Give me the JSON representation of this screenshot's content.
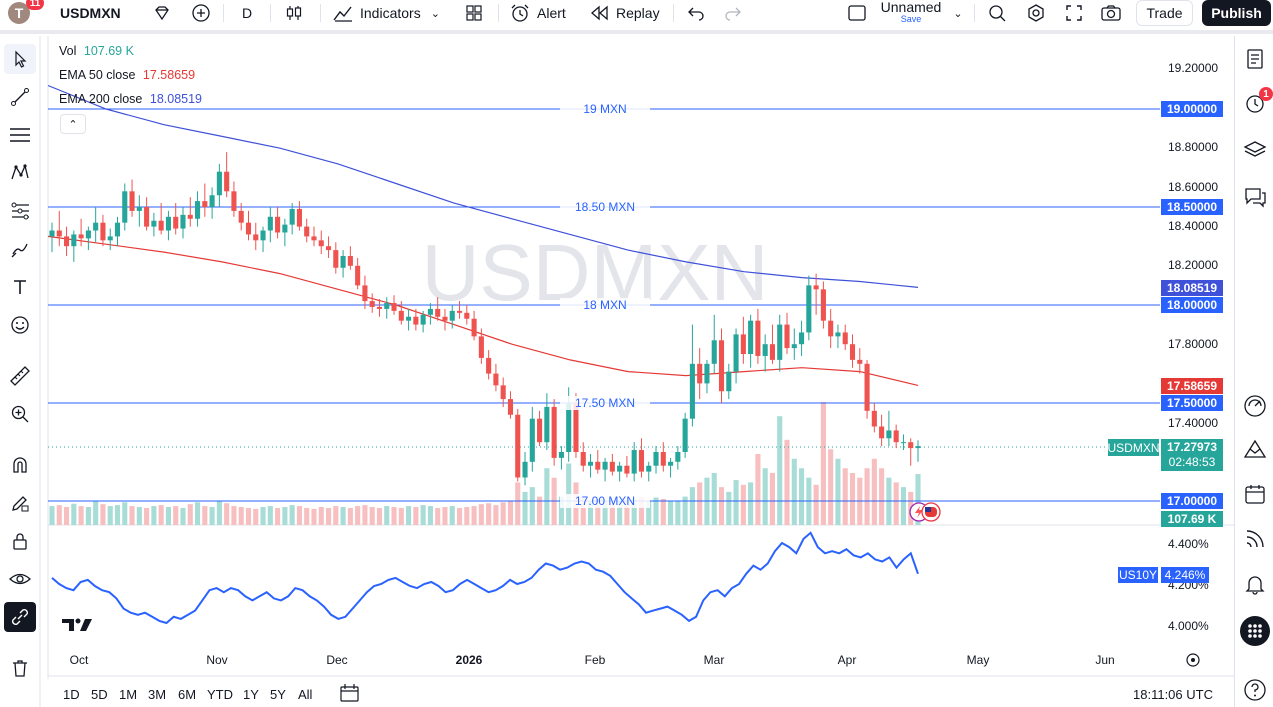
{
  "toolbar": {
    "avatar_letter": "T",
    "avatar_badge": "11",
    "symbol": "USDMXN",
    "interval": "D",
    "indicators": "Indicators",
    "alert": "Alert",
    "replay": "Replay",
    "layout_name": "Unnamed",
    "layout_save": "Save",
    "trade": "Trade",
    "publish": "Publish"
  },
  "legend": {
    "vol_label": "Vol",
    "vol_value": "107.69 K",
    "ema50_label": "EMA 50 close",
    "ema50_value": "17.58659",
    "ema200_label": "EMA 200 close",
    "ema200_value": "18.08519"
  },
  "watermark": "USDMXN",
  "hlines": [
    {
      "label": "19 MXN",
      "price": 19.0,
      "tag": "19.00000"
    },
    {
      "label": "18.50 MXN",
      "price": 18.5,
      "tag": "18.50000"
    },
    {
      "label": "18 MXN",
      "price": 18.0,
      "tag": "18.00000"
    },
    {
      "label": "17.50 MXN",
      "price": 17.5,
      "tag": "17.50000"
    },
    {
      "label": "17.00 MXN",
      "price": 17.0,
      "tag": "17.00000"
    }
  ],
  "price_axis": [
    "19.20000",
    "18.80000",
    "18.60000",
    "18.40000",
    "18.20000",
    "17.80000",
    "17.40000"
  ],
  "tags": {
    "ema200": "18.08519",
    "ema50": "17.58659",
    "symbol": "USDMXN",
    "last": "17.27973",
    "countdown": "02:48:53",
    "volume": "107.69 K"
  },
  "lower_pane": {
    "axis": [
      "4.400%",
      "4.200%",
      "4.000%"
    ],
    "symbol": "US10Y",
    "value": "4.246%"
  },
  "time_axis": [
    "Oct",
    "Nov",
    "Dec",
    "2026",
    "Feb",
    "Mar",
    "Apr",
    "May",
    "Jun"
  ],
  "periods": [
    "1D",
    "5D",
    "1M",
    "3M",
    "6M",
    "YTD",
    "1Y",
    "5Y",
    "All"
  ],
  "clock": "18:11:06 UTC",
  "rightbar_badge": "1",
  "colors": {
    "up": "#26a69a",
    "down": "#ef5350",
    "ema50": "#e53935",
    "ema200": "#3f51d9",
    "hline": "#2962ff",
    "accent": "#2962ff"
  },
  "chart_data": {
    "type": "candlestick",
    "symbol": "USDMXN",
    "interval": "D",
    "candles": [
      [
        18.35,
        18.42,
        18.27,
        18.38
      ],
      [
        18.38,
        18.48,
        18.3,
        18.35
      ],
      [
        18.35,
        18.4,
        18.25,
        18.3
      ],
      [
        18.3,
        18.38,
        18.22,
        18.36
      ],
      [
        18.36,
        18.44,
        18.3,
        18.34
      ],
      [
        18.34,
        18.4,
        18.28,
        18.38
      ],
      [
        18.38,
        18.5,
        18.32,
        18.42
      ],
      [
        18.42,
        18.46,
        18.3,
        18.33
      ],
      [
        18.33,
        18.39,
        18.28,
        18.35
      ],
      [
        18.35,
        18.45,
        18.3,
        18.42
      ],
      [
        18.42,
        18.62,
        18.38,
        18.58
      ],
      [
        18.58,
        18.64,
        18.45,
        18.48
      ],
      [
        18.48,
        18.56,
        18.4,
        18.5
      ],
      [
        18.5,
        18.55,
        18.38,
        18.4
      ],
      [
        18.4,
        18.47,
        18.35,
        18.43
      ],
      [
        18.43,
        18.52,
        18.36,
        18.38
      ],
      [
        18.38,
        18.48,
        18.33,
        18.45
      ],
      [
        18.45,
        18.52,
        18.36,
        18.39
      ],
      [
        18.39,
        18.5,
        18.34,
        18.46
      ],
      [
        18.46,
        18.55,
        18.4,
        18.44
      ],
      [
        18.44,
        18.58,
        18.4,
        18.53
      ],
      [
        18.53,
        18.62,
        18.45,
        18.5
      ],
      [
        18.5,
        18.6,
        18.44,
        18.56
      ],
      [
        18.56,
        18.72,
        18.5,
        18.68
      ],
      [
        18.68,
        18.78,
        18.55,
        18.58
      ],
      [
        18.58,
        18.63,
        18.45,
        18.48
      ],
      [
        18.48,
        18.52,
        18.38,
        18.42
      ],
      [
        18.42,
        18.48,
        18.33,
        18.36
      ],
      [
        18.36,
        18.42,
        18.28,
        18.33
      ],
      [
        18.33,
        18.4,
        18.27,
        18.38
      ],
      [
        18.38,
        18.5,
        18.32,
        18.45
      ],
      [
        18.45,
        18.5,
        18.34,
        18.37
      ],
      [
        18.37,
        18.44,
        18.3,
        18.41
      ],
      [
        18.41,
        18.52,
        18.36,
        18.49
      ],
      [
        18.49,
        18.53,
        18.38,
        18.4
      ],
      [
        18.4,
        18.44,
        18.32,
        18.35
      ],
      [
        18.35,
        18.4,
        18.3,
        18.33
      ],
      [
        18.33,
        18.38,
        18.26,
        18.3
      ],
      [
        18.3,
        18.35,
        18.24,
        18.28
      ],
      [
        18.28,
        18.32,
        18.16,
        18.19
      ],
      [
        18.19,
        18.28,
        18.14,
        18.25
      ],
      [
        18.25,
        18.3,
        18.18,
        18.2
      ],
      [
        18.2,
        18.24,
        18.08,
        18.1
      ],
      [
        18.1,
        18.15,
        17.98,
        18.02
      ],
      [
        18.02,
        18.06,
        17.96,
        17.99
      ],
      [
        17.99,
        18.03,
        17.94,
        17.98
      ],
      [
        17.98,
        18.04,
        17.93,
        18.01
      ],
      [
        18.01,
        18.05,
        17.95,
        17.97
      ],
      [
        17.97,
        18.02,
        17.9,
        17.92
      ],
      [
        17.92,
        17.98,
        17.87,
        17.94
      ],
      [
        17.94,
        17.98,
        17.87,
        17.9
      ],
      [
        17.9,
        17.97,
        17.86,
        17.95
      ],
      [
        17.95,
        18.01,
        17.9,
        17.98
      ],
      [
        17.98,
        18.04,
        17.92,
        17.94
      ],
      [
        17.94,
        17.98,
        17.87,
        17.92
      ],
      [
        17.92,
        18.0,
        17.88,
        17.97
      ],
      [
        17.97,
        18.02,
        17.93,
        17.96
      ],
      [
        17.96,
        18.0,
        17.9,
        17.93
      ],
      [
        17.93,
        17.97,
        17.82,
        17.84
      ],
      [
        17.84,
        17.88,
        17.7,
        17.73
      ],
      [
        17.73,
        17.77,
        17.62,
        17.65
      ],
      [
        17.65,
        17.7,
        17.56,
        17.59
      ],
      [
        17.59,
        17.63,
        17.48,
        17.52
      ],
      [
        17.52,
        17.56,
        17.42,
        17.44
      ],
      [
        17.44,
        17.47,
        17.1,
        17.12
      ],
      [
        17.12,
        17.25,
        17.08,
        17.2
      ],
      [
        17.2,
        17.48,
        17.15,
        17.42
      ],
      [
        17.42,
        17.46,
        17.28,
        17.3
      ],
      [
        17.3,
        17.55,
        17.26,
        17.48
      ],
      [
        17.48,
        17.52,
        17.18,
        17.22
      ],
      [
        17.22,
        17.28,
        17.16,
        17.25
      ],
      [
        17.25,
        17.58,
        17.2,
        17.5
      ],
      [
        17.5,
        17.55,
        17.22,
        17.25
      ],
      [
        17.25,
        17.3,
        17.15,
        17.18
      ],
      [
        17.18,
        17.24,
        17.12,
        17.2
      ],
      [
        17.2,
        17.26,
        17.14,
        17.16
      ],
      [
        17.16,
        17.22,
        17.1,
        17.2
      ],
      [
        17.2,
        17.24,
        17.13,
        17.15
      ],
      [
        17.15,
        17.2,
        17.1,
        17.18
      ],
      [
        17.18,
        17.23,
        17.12,
        17.14
      ],
      [
        17.14,
        17.3,
        17.1,
        17.26
      ],
      [
        17.26,
        17.32,
        17.12,
        17.15
      ],
      [
        17.15,
        17.2,
        17.1,
        17.18
      ],
      [
        17.18,
        17.28,
        17.14,
        17.25
      ],
      [
        17.25,
        17.3,
        17.15,
        17.18
      ],
      [
        17.18,
        17.22,
        17.12,
        17.2
      ],
      [
        17.2,
        17.28,
        17.16,
        17.25
      ],
      [
        17.25,
        17.45,
        17.22,
        17.42
      ],
      [
        17.42,
        17.9,
        17.38,
        17.7
      ],
      [
        17.7,
        17.78,
        17.52,
        17.6
      ],
      [
        17.6,
        17.72,
        17.55,
        17.7
      ],
      [
        17.7,
        17.95,
        17.65,
        17.82
      ],
      [
        17.82,
        17.88,
        17.5,
        17.56
      ],
      [
        17.56,
        17.7,
        17.52,
        17.66
      ],
      [
        17.66,
        17.88,
        17.6,
        17.85
      ],
      [
        17.85,
        17.94,
        17.7,
        17.75
      ],
      [
        17.75,
        17.95,
        17.68,
        17.92
      ],
      [
        17.92,
        17.98,
        17.7,
        17.74
      ],
      [
        17.74,
        17.85,
        17.66,
        17.8
      ],
      [
        17.8,
        17.9,
        17.7,
        17.72
      ],
      [
        17.72,
        17.95,
        17.66,
        17.9
      ],
      [
        17.9,
        17.96,
        17.75,
        17.78
      ],
      [
        17.78,
        17.88,
        17.72,
        17.8
      ],
      [
        17.8,
        17.92,
        17.74,
        17.86
      ],
      [
        17.86,
        18.15,
        17.82,
        18.1
      ],
      [
        18.1,
        18.16,
        17.95,
        18.08
      ],
      [
        18.08,
        18.12,
        17.88,
        17.92
      ],
      [
        17.92,
        17.98,
        17.78,
        17.84
      ],
      [
        17.84,
        17.9,
        17.78,
        17.86
      ],
      [
        17.86,
        17.9,
        17.77,
        17.8
      ],
      [
        17.8,
        17.85,
        17.68,
        17.72
      ],
      [
        17.72,
        17.78,
        17.65,
        17.7
      ],
      [
        17.7,
        17.72,
        17.42,
        17.46
      ],
      [
        17.46,
        17.5,
        17.35,
        17.38
      ],
      [
        17.38,
        17.44,
        17.28,
        17.32
      ],
      [
        17.32,
        17.46,
        17.28,
        17.36
      ],
      [
        17.36,
        17.39,
        17.27,
        17.3
      ],
      [
        17.3,
        17.34,
        17.26,
        17.3
      ],
      [
        17.3,
        17.32,
        17.18,
        17.27
      ],
      [
        17.27,
        17.31,
        17.2,
        17.28
      ]
    ],
    "ema50": [
      18.35,
      18.31,
      18.27,
      18.22,
      18.16,
      18.08,
      18.0,
      17.9,
      17.8,
      17.72,
      17.66,
      17.64,
      17.66,
      17.68,
      17.66,
      17.59
    ],
    "ema200": [
      19.12,
      19.0,
      18.92,
      18.86,
      18.8,
      18.72,
      18.62,
      18.52,
      18.44,
      18.36,
      18.28,
      18.22,
      18.17,
      18.14,
      18.12,
      18.09
    ],
    "volume": [
      40,
      42,
      38,
      45,
      40,
      38,
      50,
      44,
      40,
      42,
      48,
      40,
      38,
      36,
      40,
      42,
      38,
      40,
      36,
      44,
      48,
      40,
      38,
      50,
      46,
      40,
      38,
      36,
      34,
      38,
      40,
      36,
      38,
      42,
      40,
      36,
      34,
      38,
      36,
      40,
      38,
      36,
      40,
      42,
      38,
      36,
      40,
      38,
      36,
      40,
      38,
      42,
      40,
      36,
      38,
      40,
      36,
      38,
      40,
      44,
      46,
      42,
      48,
      50,
      90,
      70,
      80,
      60,
      120,
      100,
      60,
      130,
      90,
      60,
      50,
      55,
      50,
      48,
      52,
      50,
      55,
      60,
      50,
      58,
      55,
      50,
      52,
      60,
      80,
      90,
      100,
      110,
      80,
      70,
      95,
      85,
      90,
      150,
      120,
      110,
      230,
      180,
      140,
      120,
      100,
      85,
      260,
      160,
      140,
      120,
      110,
      100,
      120,
      140,
      120,
      100,
      90,
      80,
      70,
      107.69
    ],
    "us10y": [
      4.23,
      4.2,
      4.18,
      4.17,
      4.21,
      4.22,
      4.19,
      4.17,
      4.16,
      4.13,
      4.08,
      4.06,
      4.05,
      4.06,
      4.04,
      4.02,
      4.01,
      4.04,
      4.03,
      4.05,
      4.07,
      4.12,
      4.17,
      4.18,
      4.16,
      4.18,
      4.17,
      4.14,
      4.12,
      4.14,
      4.16,
      4.13,
      4.12,
      4.14,
      4.18,
      4.17,
      4.14,
      4.12,
      4.09,
      4.05,
      4.03,
      4.04,
      4.08,
      4.12,
      4.16,
      4.19,
      4.2,
      4.22,
      4.23,
      4.21,
      4.19,
      4.18,
      4.2,
      4.21,
      4.19,
      4.16,
      4.17,
      4.2,
      4.22,
      4.2,
      4.18,
      4.16,
      4.17,
      4.19,
      4.22,
      4.2,
      4.21,
      4.23,
      4.27,
      4.3,
      4.29,
      4.27,
      4.28,
      4.3,
      4.31,
      4.3,
      4.27,
      4.26,
      4.24,
      4.2,
      4.16,
      4.13,
      4.1,
      4.06,
      4.07,
      4.08,
      4.09,
      4.07,
      4.05,
      4.02,
      4.04,
      4.12,
      4.16,
      4.17,
      4.14,
      4.18,
      4.2,
      4.25,
      4.29,
      4.27,
      4.3,
      4.36,
      4.4,
      4.38,
      4.35,
      4.42,
      4.45,
      4.38,
      4.35,
      4.36,
      4.35,
      4.37,
      4.34,
      4.33,
      4.35,
      4.32,
      4.31,
      4.33,
      4.28,
      4.32,
      4.35,
      4.25
    ]
  }
}
